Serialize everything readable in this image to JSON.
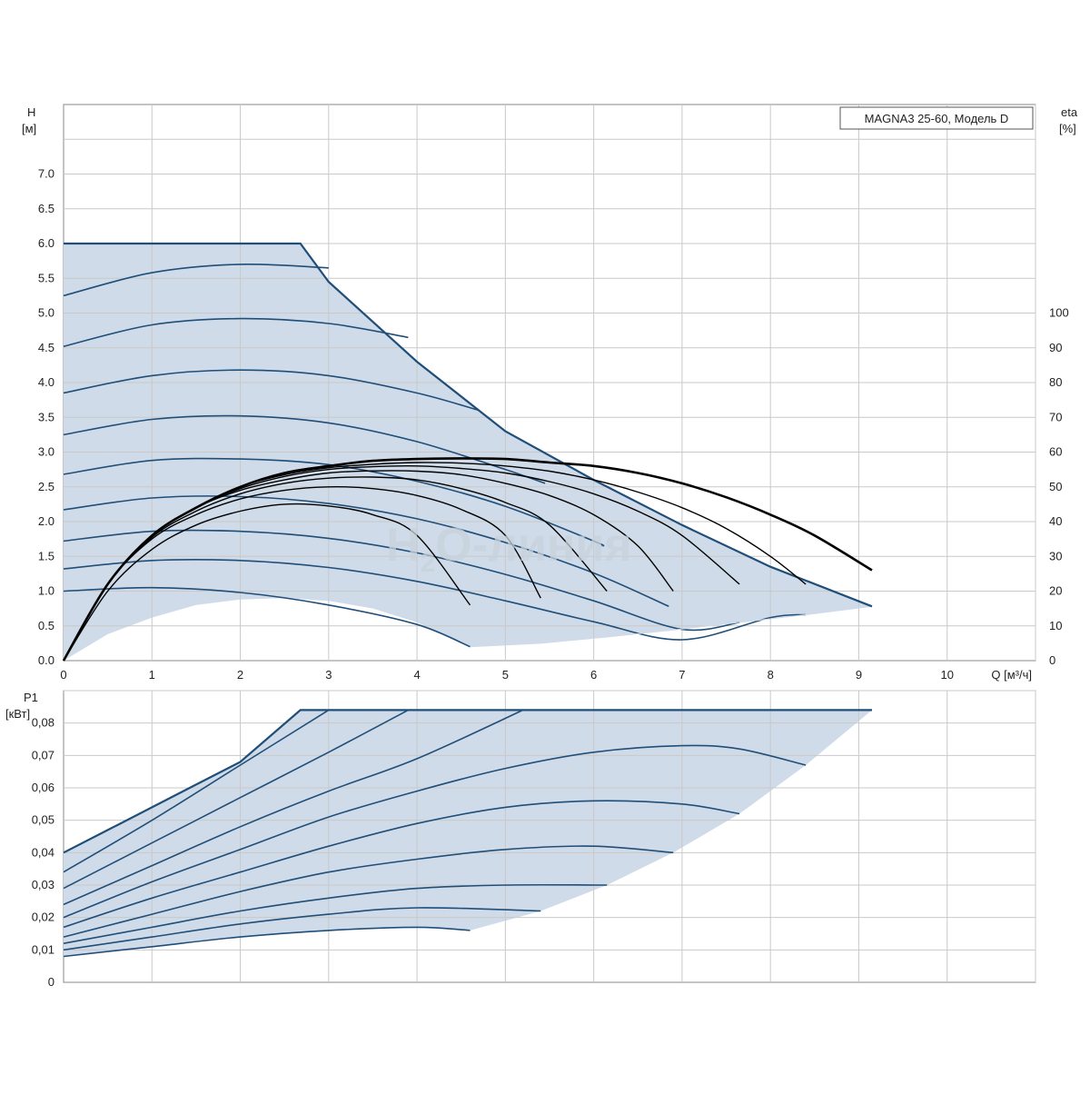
{
  "watermark": {
    "main": "H",
    "sub": "2",
    "rest": "O-линия"
  },
  "colors": {
    "fill": "#cfdbe8",
    "curve": "#1f4e79",
    "eta": "#000000",
    "grid": "#c9c9c9",
    "frame": "#8a8a8a"
  },
  "chart_data": [
    {
      "type": "line",
      "legend": "MAGNA3 25-60, Модель D",
      "legend_position": "top-right",
      "ylabel": "H",
      "ylabel_unit": "[м]",
      "y2label": "eta",
      "y2label_unit": "[%]",
      "xlabel": "Q [м³/ч]",
      "xlim": [
        0,
        11
      ],
      "ylim": [
        0,
        8
      ],
      "y2lim": [
        0,
        100
      ],
      "grid": true,
      "x_ticks": [
        "0",
        "1",
        "2",
        "3",
        "4",
        "5",
        "6",
        "7",
        "8",
        "9",
        "10"
      ],
      "y_ticks": [
        "0.0",
        "0.5",
        "1.0",
        "1.5",
        "2.0",
        "2.5",
        "3.0",
        "3.5",
        "4.0",
        "4.5",
        "5.0",
        "5.5",
        "6.0",
        "6.5",
        "7.0"
      ],
      "y2_ticks": [
        "0",
        "10",
        "20",
        "30",
        "40",
        "50",
        "60",
        "70",
        "80",
        "90",
        "100"
      ],
      "max_curve": {
        "x": [
          0,
          2.68,
          3.0,
          4.0,
          5.0,
          6.0,
          7.0,
          8.0,
          9.15
        ],
        "y": [
          6.0,
          6.0,
          5.45,
          4.3,
          3.3,
          2.6,
          1.95,
          1.35,
          0.78
        ]
      },
      "min_curve": {
        "x": [
          0,
          0.5,
          1.0,
          1.5,
          2.0,
          2.5,
          3.0,
          3.5,
          4.0,
          4.6
        ],
        "y": [
          0,
          0.38,
          0.62,
          0.8,
          0.88,
          0.9,
          0.86,
          0.75,
          0.55,
          0.2
        ]
      },
      "bottom_boundary": {
        "x": [
          4.6,
          5.4,
          6.15,
          6.9,
          7.65,
          8.4,
          9.15
        ],
        "y": [
          0.2,
          0.25,
          0.34,
          0.44,
          0.55,
          0.66,
          0.78
        ]
      },
      "head_curves": [
        {
          "x": [
            0,
            1,
            2,
            3.0
          ],
          "y": [
            5.25,
            5.58,
            5.7,
            5.65
          ]
        },
        {
          "x": [
            0,
            1,
            2,
            3,
            3.9
          ],
          "y": [
            4.52,
            4.83,
            4.92,
            4.85,
            4.65
          ]
        },
        {
          "x": [
            0,
            1,
            2,
            3,
            4,
            4.7
          ],
          "y": [
            3.85,
            4.1,
            4.18,
            4.1,
            3.85,
            3.6
          ]
        },
        {
          "x": [
            0,
            1,
            2,
            3,
            4,
            5,
            5.45
          ],
          "y": [
            3.25,
            3.47,
            3.52,
            3.42,
            3.15,
            2.75,
            2.55
          ]
        },
        {
          "x": [
            0,
            1,
            2,
            3,
            4,
            5,
            6,
            6.1
          ],
          "y": [
            2.68,
            2.88,
            2.9,
            2.82,
            2.58,
            2.22,
            1.72,
            1.65
          ]
        },
        {
          "x": [
            0,
            1,
            2,
            3,
            4,
            5,
            6,
            6.85
          ],
          "y": [
            2.17,
            2.34,
            2.36,
            2.26,
            2.04,
            1.7,
            1.26,
            0.78
          ]
        },
        {
          "x": [
            0,
            1,
            2,
            3,
            4,
            5,
            6,
            7,
            7.65
          ],
          "y": [
            1.72,
            1.86,
            1.86,
            1.76,
            1.55,
            1.24,
            0.86,
            0.45,
            0.55
          ]
        },
        {
          "x": [
            0,
            1,
            2,
            3,
            4,
            5,
            6,
            7,
            8,
            8.4
          ],
          "y": [
            1.32,
            1.44,
            1.44,
            1.34,
            1.14,
            0.86,
            0.56,
            0.3,
            0.62,
            0.66
          ]
        },
        {
          "x": [
            0,
            1,
            2,
            3,
            4,
            4.6
          ],
          "y": [
            1.0,
            1.05,
            0.98,
            0.8,
            0.52,
            0.2
          ]
        }
      ],
      "eta_curves": [
        {
          "x": [
            0,
            0.5,
            1,
            1.5,
            2,
            2.5,
            3,
            3.5,
            4,
            4.5,
            5,
            5.5,
            6,
            6.5,
            7,
            7.5,
            8,
            8.5,
            9.15
          ],
          "y": [
            0,
            22,
            36,
            44,
            50,
            54,
            56,
            57.5,
            58,
            58.2,
            58,
            57,
            56,
            54,
            51,
            47,
            42,
            36,
            26
          ]
        },
        {
          "x": [
            0,
            0.5,
            1,
            1.5,
            2,
            2.5,
            3,
            3.5,
            4,
            4.5,
            5,
            5.5,
            6,
            6.5,
            7,
            7.5,
            8,
            8.4
          ],
          "y": [
            0,
            22,
            36,
            44,
            50,
            53.5,
            55.5,
            56.5,
            57,
            56.8,
            56,
            54.5,
            52,
            48.5,
            44,
            38,
            30,
            22
          ]
        },
        {
          "x": [
            0,
            0.5,
            1,
            1.5,
            2,
            2.5,
            3,
            3.5,
            4,
            4.5,
            5,
            5.5,
            6,
            6.5,
            7,
            7.65
          ],
          "y": [
            0,
            22,
            36,
            44,
            49.5,
            53,
            55,
            55.8,
            56,
            55.3,
            54,
            51.5,
            48,
            43,
            36,
            22
          ]
        },
        {
          "x": [
            0,
            0.5,
            1,
            1.5,
            2,
            2.5,
            3,
            3.5,
            4,
            4.5,
            5,
            5.5,
            6,
            6.5,
            6.9
          ],
          "y": [
            0,
            22,
            36,
            44,
            49,
            52,
            54,
            54.6,
            54.5,
            53.5,
            51,
            47.5,
            42,
            33,
            20
          ]
        },
        {
          "x": [
            0,
            0.5,
            1,
            1.5,
            2,
            2.5,
            3,
            3.5,
            4,
            4.5,
            5,
            5.5,
            6.15
          ],
          "y": [
            0,
            22,
            35.5,
            43,
            48,
            51,
            52.5,
            52.8,
            52,
            49.5,
            45.5,
            39,
            20
          ]
        },
        {
          "x": [
            0,
            0.5,
            1,
            1.5,
            2,
            2.5,
            3,
            3.5,
            4,
            4.5,
            5,
            5.4
          ],
          "y": [
            0,
            22,
            35,
            42,
            46.5,
            49,
            50,
            49.5,
            47.5,
            43.5,
            36,
            18
          ]
        },
        {
          "x": [
            0,
            0.5,
            1,
            1.5,
            2,
            2.5,
            3,
            3.5,
            4,
            4.6
          ],
          "y": [
            0,
            20,
            32,
            39,
            43,
            45,
            44.5,
            42,
            36,
            16
          ]
        }
      ]
    },
    {
      "type": "line",
      "ylabel": "P1",
      "ylabel_unit": "[кВт]",
      "xlim": [
        0,
        11
      ],
      "ylim": [
        0,
        0.09
      ],
      "grid": true,
      "y_ticks": [
        "0",
        "0,01",
        "0,02",
        "0,03",
        "0,04",
        "0,05",
        "0,06",
        "0,07",
        "0,08"
      ],
      "max_curve": {
        "x": [
          0,
          0.5,
          1,
          1.5,
          2,
          2.68,
          3,
          4,
          5,
          6,
          7,
          8,
          9.15
        ],
        "y": [
          0.04,
          0.047,
          0.054,
          0.061,
          0.068,
          0.084,
          0.084,
          0.084,
          0.084,
          0.084,
          0.084,
          0.084,
          0.084
        ]
      },
      "bottom_boundary": {
        "x": [
          4.6,
          5.4,
          6.15,
          6.9,
          7.65,
          8.4,
          9.15
        ],
        "y": [
          0.016,
          0.022,
          0.03,
          0.04,
          0.052,
          0.067,
          0.084
        ]
      },
      "power_curves": [
        {
          "x": [
            0,
            1,
            2,
            3.0
          ],
          "y": [
            0.034,
            0.05,
            0.067,
            0.084
          ]
        },
        {
          "x": [
            0,
            1,
            2,
            3,
            3.9
          ],
          "y": [
            0.029,
            0.043,
            0.057,
            0.071,
            0.084
          ]
        },
        {
          "x": [
            0,
            1,
            2,
            3,
            4,
            5.2
          ],
          "y": [
            0.024,
            0.036,
            0.048,
            0.059,
            0.069,
            0.084
          ]
        },
        {
          "x": [
            0,
            1,
            2,
            3,
            4,
            5,
            6,
            7,
            7.65,
            8.4
          ],
          "y": [
            0.02,
            0.031,
            0.041,
            0.051,
            0.059,
            0.066,
            0.071,
            0.073,
            0.072,
            0.067
          ]
        },
        {
          "x": [
            0,
            1,
            2,
            3,
            4,
            5,
            6,
            7,
            7.65
          ],
          "y": [
            0.017,
            0.026,
            0.034,
            0.042,
            0.049,
            0.054,
            0.056,
            0.055,
            0.052
          ]
        },
        {
          "x": [
            0,
            1,
            2,
            3,
            4,
            5,
            6,
            6.9
          ],
          "y": [
            0.014,
            0.021,
            0.028,
            0.034,
            0.038,
            0.041,
            0.042,
            0.04
          ]
        },
        {
          "x": [
            0,
            1,
            2,
            3,
            4,
            5,
            6.15
          ],
          "y": [
            0.012,
            0.017,
            0.022,
            0.026,
            0.029,
            0.03,
            0.03
          ]
        },
        {
          "x": [
            0,
            1,
            2,
            3,
            4,
            5.4
          ],
          "y": [
            0.01,
            0.014,
            0.018,
            0.021,
            0.023,
            0.022
          ]
        },
        {
          "x": [
            0,
            1,
            2,
            3,
            4,
            4.6
          ],
          "y": [
            0.008,
            0.011,
            0.014,
            0.016,
            0.017,
            0.016
          ]
        }
      ]
    }
  ]
}
